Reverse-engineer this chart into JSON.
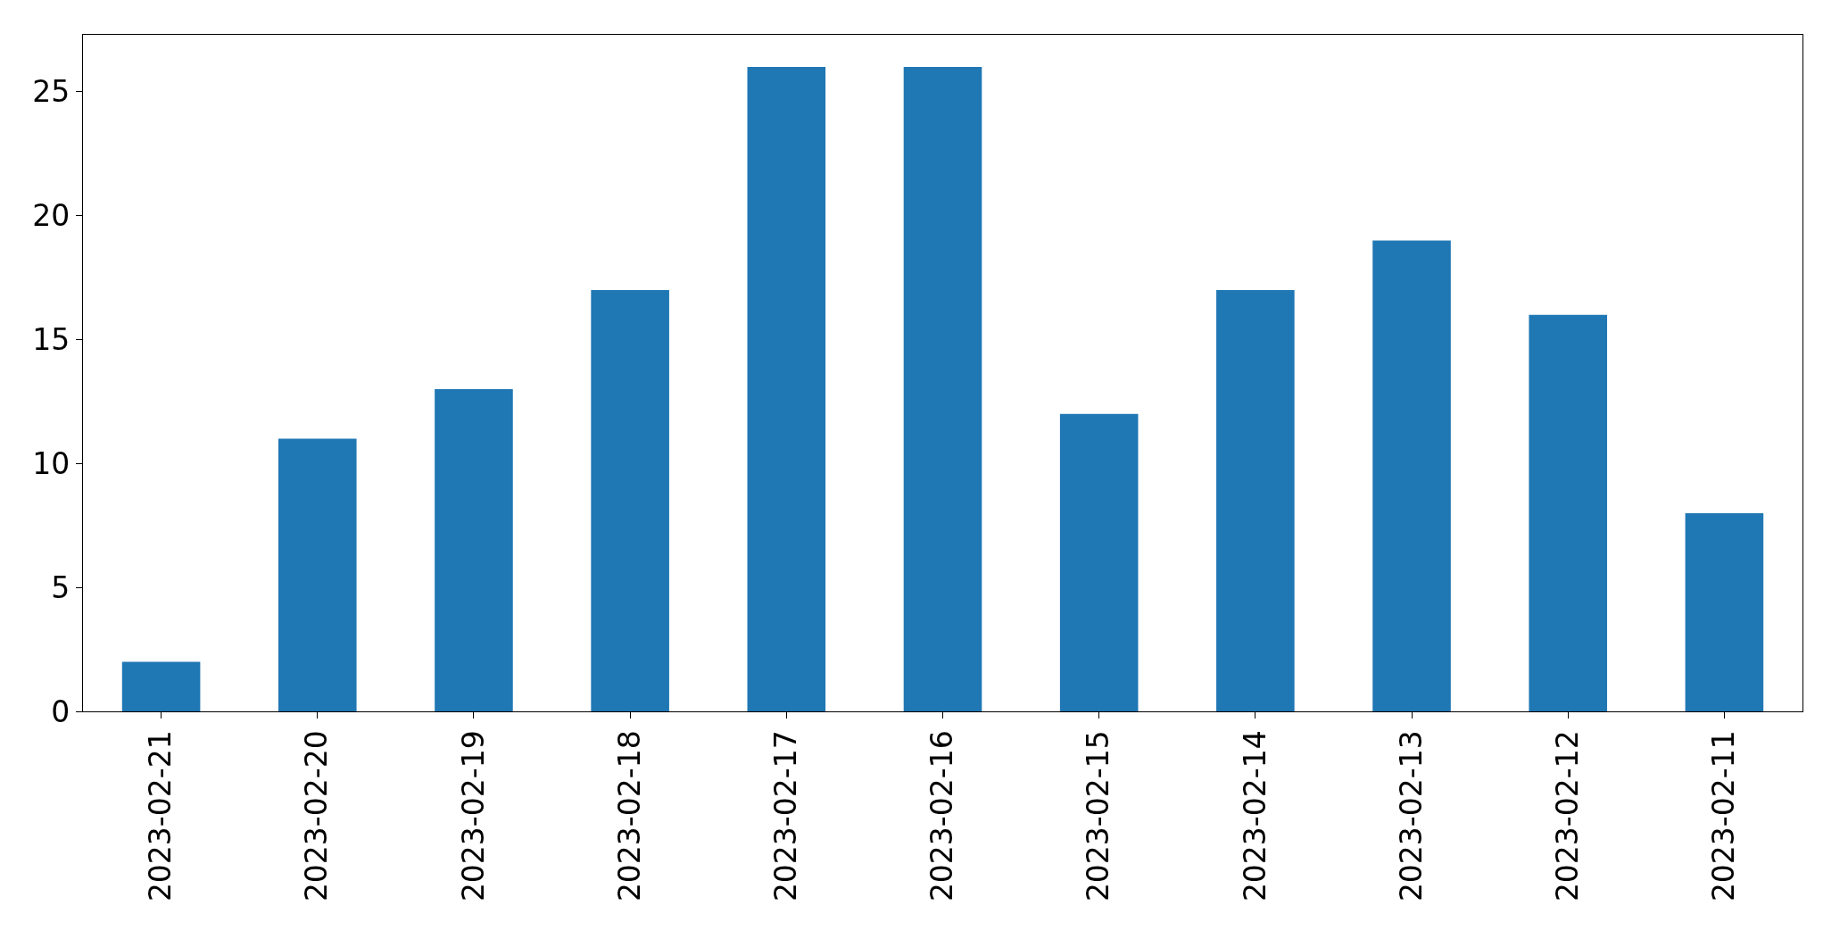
{
  "chart_data": {
    "type": "bar",
    "categories": [
      "2023-02-21",
      "2023-02-20",
      "2023-02-19",
      "2023-02-18",
      "2023-02-17",
      "2023-02-16",
      "2023-02-15",
      "2023-02-14",
      "2023-02-13",
      "2023-02-12",
      "2023-02-11"
    ],
    "values": [
      2,
      11,
      13,
      17,
      26,
      26,
      12,
      17,
      19,
      16,
      8
    ],
    "color": "#1f77b4",
    "ylim": [
      0,
      27.3
    ],
    "yticks": [
      0,
      5,
      10,
      15,
      20,
      25
    ]
  }
}
